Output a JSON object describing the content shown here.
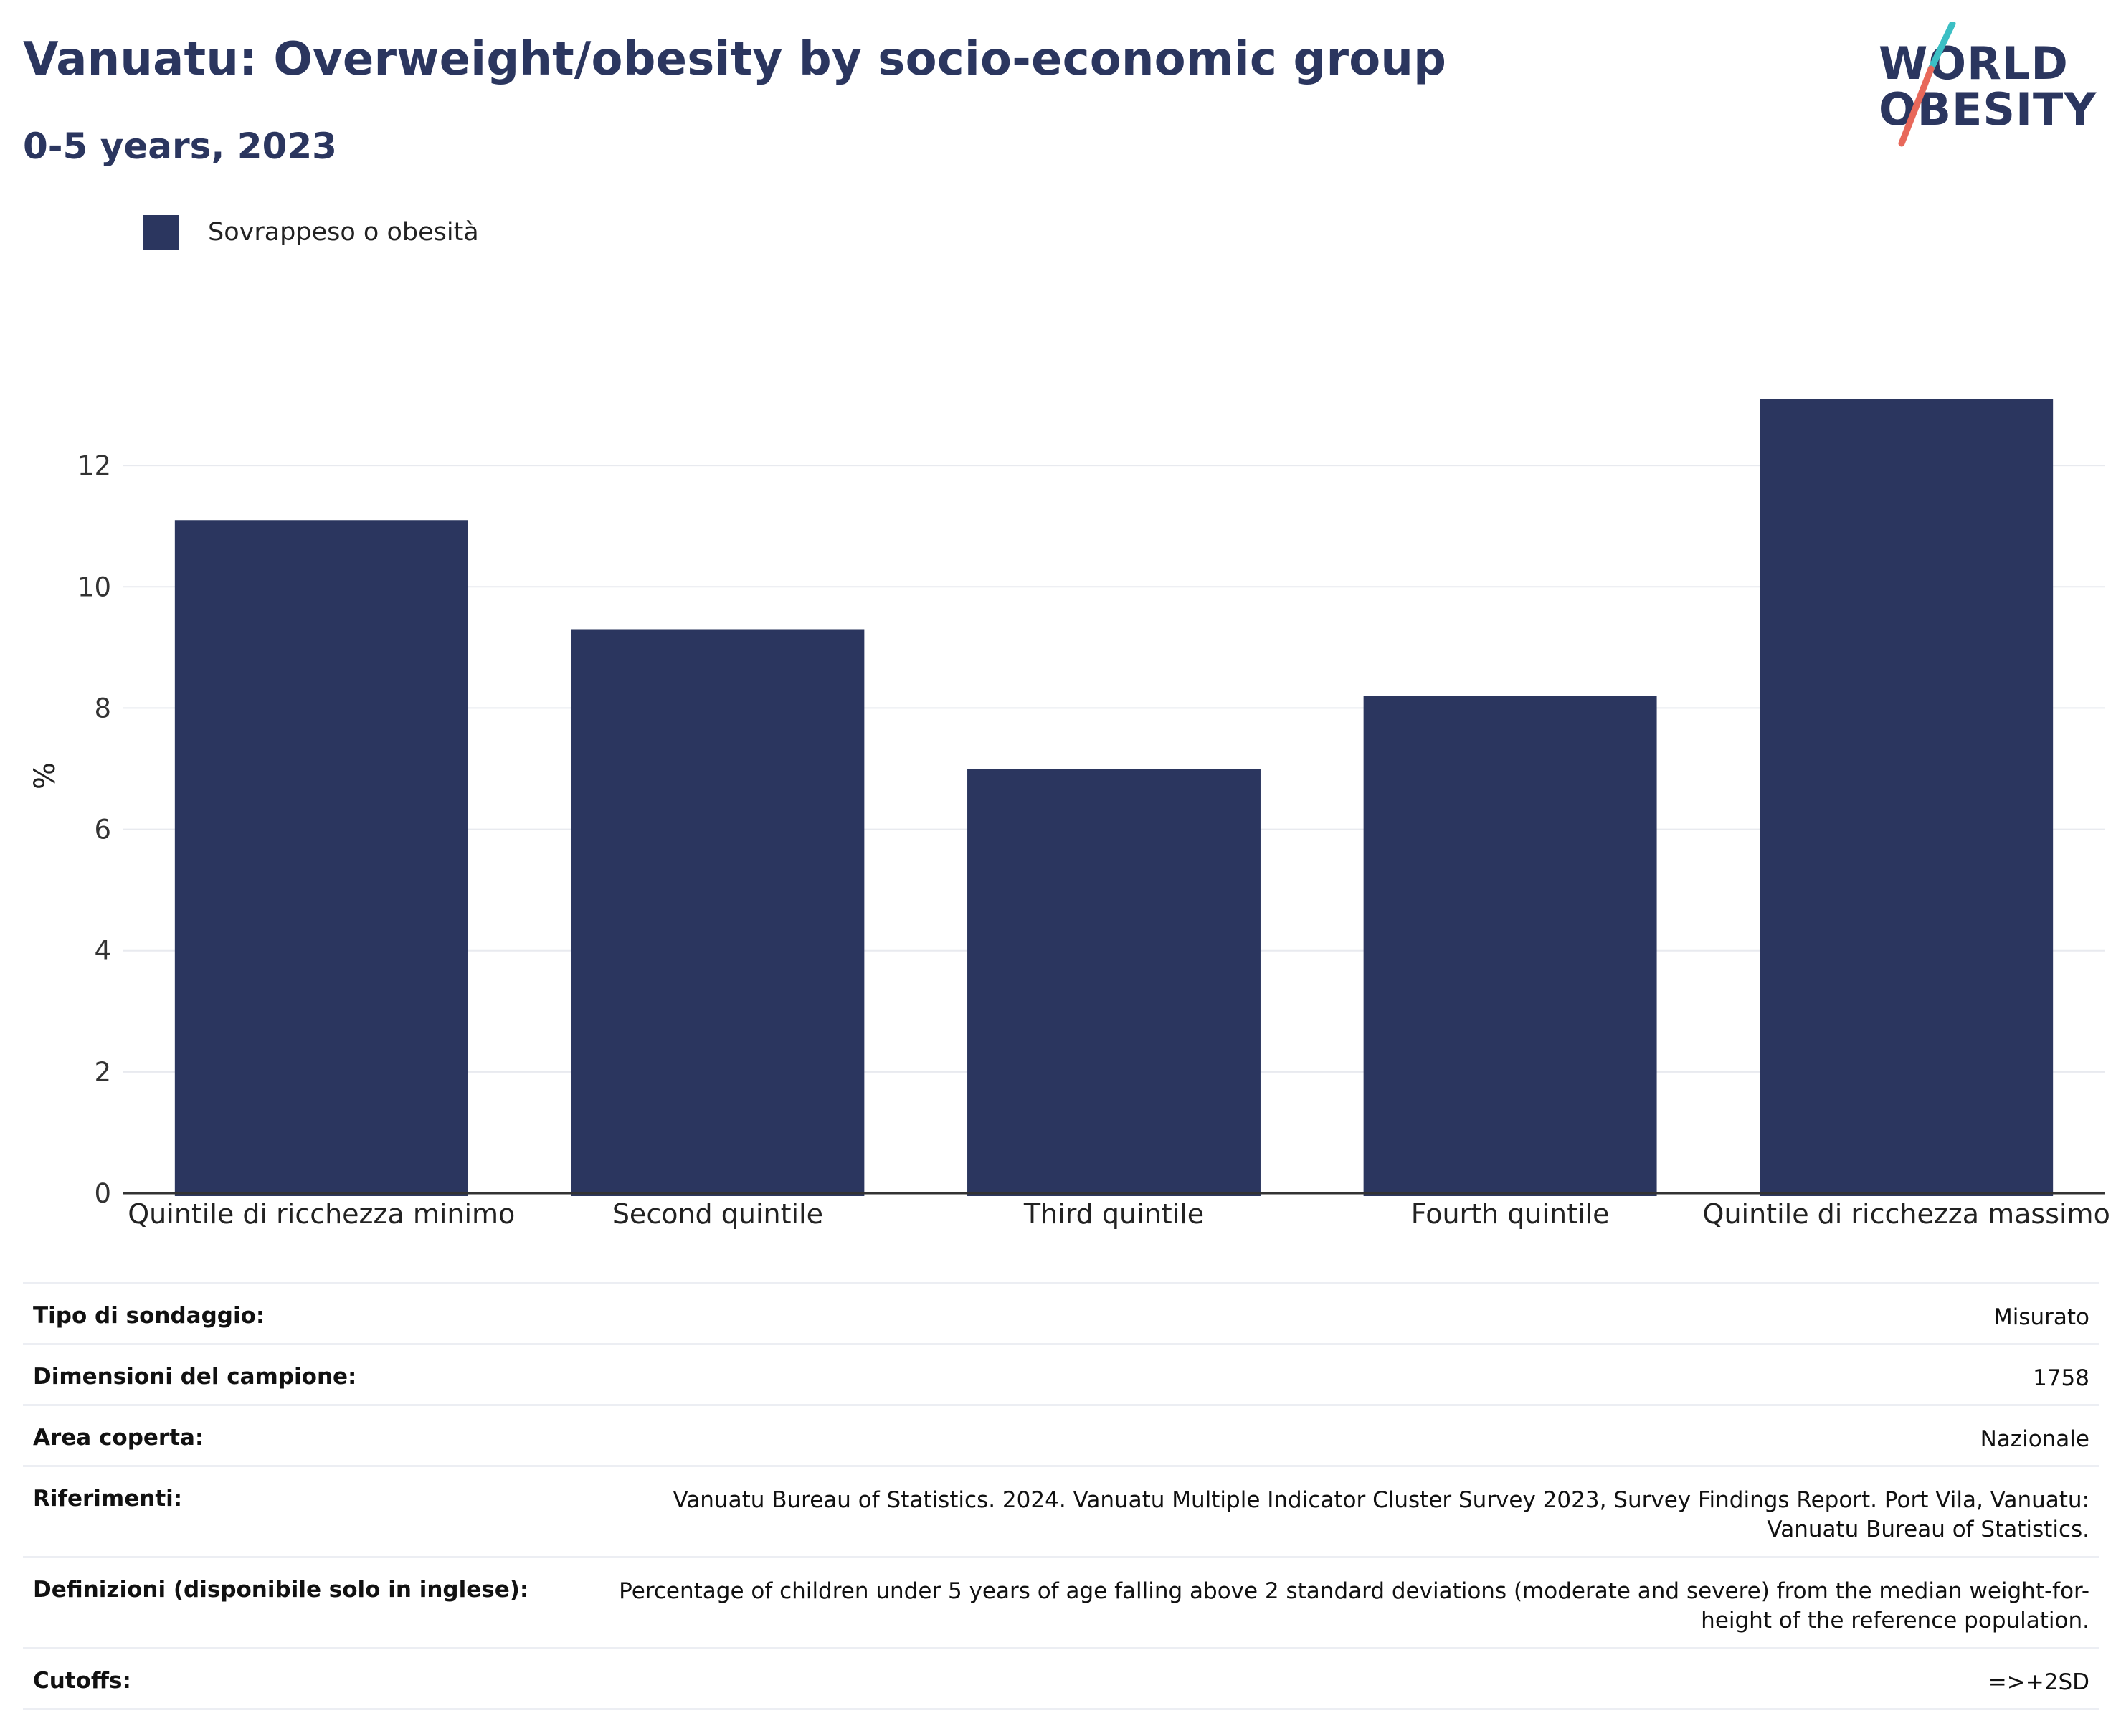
{
  "header": {
    "title": "Vanuatu: Overweight/obesity by socio-economic group",
    "subtitle": "0-5 years, 2023"
  },
  "logo": {
    "line1": "WORLD",
    "line2": "OBESITY"
  },
  "colors": {
    "bar": "#2b365f",
    "grid": "#e8eaef",
    "axis": "#333333",
    "logo_teal": "#3bbfc4",
    "logo_coral": "#e8685a"
  },
  "chart_data": {
    "type": "bar",
    "categories": [
      "Quintile di ricchezza minimo",
      "Second quintile",
      "Third quintile",
      "Fourth quintile",
      "Quintile di ricchezza massimo"
    ],
    "series": [
      {
        "name": "Sovrappeso o obesità",
        "values": [
          11.1,
          9.3,
          7.0,
          8.2,
          13.1
        ]
      }
    ],
    "ylabel": "%",
    "ylim": [
      0,
      14
    ],
    "yticks": [
      0,
      2,
      4,
      6,
      8,
      10,
      12
    ],
    "grid": true,
    "legend": "top-left"
  },
  "table": {
    "rows": [
      {
        "label": "Tipo di sondaggio:",
        "value": "Misurato"
      },
      {
        "label": "Dimensioni del campione:",
        "value": "1758"
      },
      {
        "label": "Area coperta:",
        "value": "Nazionale"
      },
      {
        "label": "Riferimenti:",
        "value": "Vanuatu Bureau of Statistics. 2024. Vanuatu Multiple Indicator Cluster Survey 2023, Survey Findings Report. Port Vila, Vanuatu: Vanuatu Bureau of Statistics."
      },
      {
        "label": "Definizioni (disponibile solo in inglese):",
        "value": "Percentage of children under 5 years of age falling above 2 standard deviations (moderate and severe) from the median weight-for-height of the reference population."
      },
      {
        "label": "Cutoffs:",
        "value": "=>+2SD"
      }
    ]
  }
}
